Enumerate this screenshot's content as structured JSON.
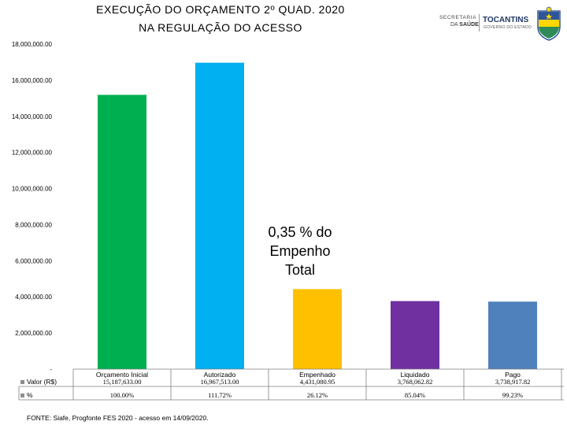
{
  "header": {
    "title_line1": "EXECUÇÃO DO ORÇAMENTO  2º QUAD. 2020",
    "title_line2": "NA REGULAÇÃO DO ACESSO"
  },
  "logos": {
    "secretaria_line1": "SECRETARIA",
    "secretaria_line2_prefix": "DA",
    "secretaria_line2_word": "SAÚDE",
    "state_name": "TOCANTINS",
    "state_sub": "GOVERNO DO ESTADO"
  },
  "annotation": [
    "0,35 % do",
    "Empenho",
    "Total"
  ],
  "footer": {
    "source": "FONTE: Siafe, Progfonte FES 2020 - acesso em 14/09/2020."
  },
  "chart_data": {
    "type": "bar",
    "categories": [
      "Orçamento Inicial",
      "Autorizado",
      "Empenhado",
      "Liquidado",
      "Pago"
    ],
    "values": [
      15187633.0,
      16967513.0,
      4431080.95,
      3768062.82,
      3738917.82
    ],
    "colors": [
      "#00b050",
      "#00b0f0",
      "#ffc000",
      "#7030a0",
      "#4f81bd"
    ],
    "ylim": [
      0,
      18000000
    ],
    "yticks": [
      0,
      2000000,
      4000000,
      6000000,
      8000000,
      10000000,
      12000000,
      14000000,
      16000000,
      18000000
    ],
    "ytick_labels": [
      "-",
      "2,000,000.00",
      "4,000,000.00",
      "6,000,000.00",
      "8,000,000.00",
      "10,000,000.00",
      "12,000,000.00",
      "14,000,000.00",
      "16,000,000.00",
      "18,000,000.00"
    ],
    "grid": false,
    "legend_placement": "data-table",
    "table": {
      "rows": [
        {
          "name": "Valor (R$)",
          "cells": [
            "15,187,633.00",
            "16,967,513.00",
            "4,431,080.95",
            "3,768,062.82",
            "3,738,917.82"
          ]
        },
        {
          "name": "%",
          "cells": [
            "100.00%",
            "111.72%",
            "26.12%",
            "85.04%",
            "99.23%"
          ]
        }
      ]
    }
  }
}
